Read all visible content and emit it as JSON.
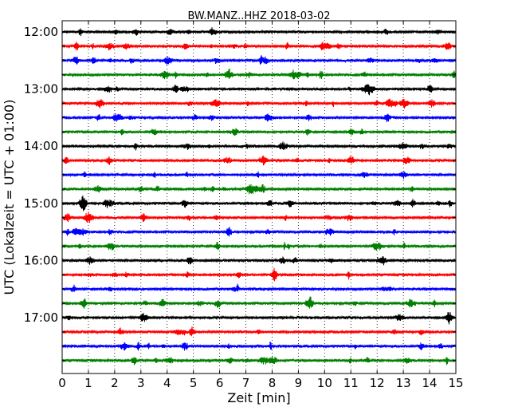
{
  "chart_data": {
    "type": "line",
    "title": "BW.MANZ..HHZ 2018-03-02",
    "xlabel": "Zeit  [min]",
    "ylabel": "UTC (Lokalzeit = UTC + 01:00)",
    "xlim": [
      0,
      15
    ],
    "x_ticks": [
      "0",
      "1",
      "2",
      "3",
      "4",
      "5",
      "6",
      "7",
      "8",
      "9",
      "10",
      "11",
      "12",
      "13",
      "14",
      "15"
    ],
    "y_tick_labels": [
      "12:00",
      "13:00",
      "14:00",
      "15:00",
      "16:00",
      "17:00"
    ],
    "trace_interval_min": 15,
    "grid": "vertical dotted at each minute",
    "trace_colors": [
      "#000000",
      "#ff0000",
      "#0000ff",
      "#007f00"
    ],
    "traces": [
      {
        "start": "12:00"
      },
      {
        "start": "12:15"
      },
      {
        "start": "12:30"
      },
      {
        "start": "12:45"
      },
      {
        "start": "13:00"
      },
      {
        "start": "13:15"
      },
      {
        "start": "13:30"
      },
      {
        "start": "13:45"
      },
      {
        "start": "14:00"
      },
      {
        "start": "14:15"
      },
      {
        "start": "14:30"
      },
      {
        "start": "14:45"
      },
      {
        "start": "15:00"
      },
      {
        "start": "15:15"
      },
      {
        "start": "15:30"
      },
      {
        "start": "15:45"
      },
      {
        "start": "16:00"
      },
      {
        "start": "16:15"
      },
      {
        "start": "16:30"
      },
      {
        "start": "16:45"
      },
      {
        "start": "17:00"
      },
      {
        "start": "17:15"
      },
      {
        "start": "17:30"
      },
      {
        "start": "17:45"
      }
    ]
  }
}
